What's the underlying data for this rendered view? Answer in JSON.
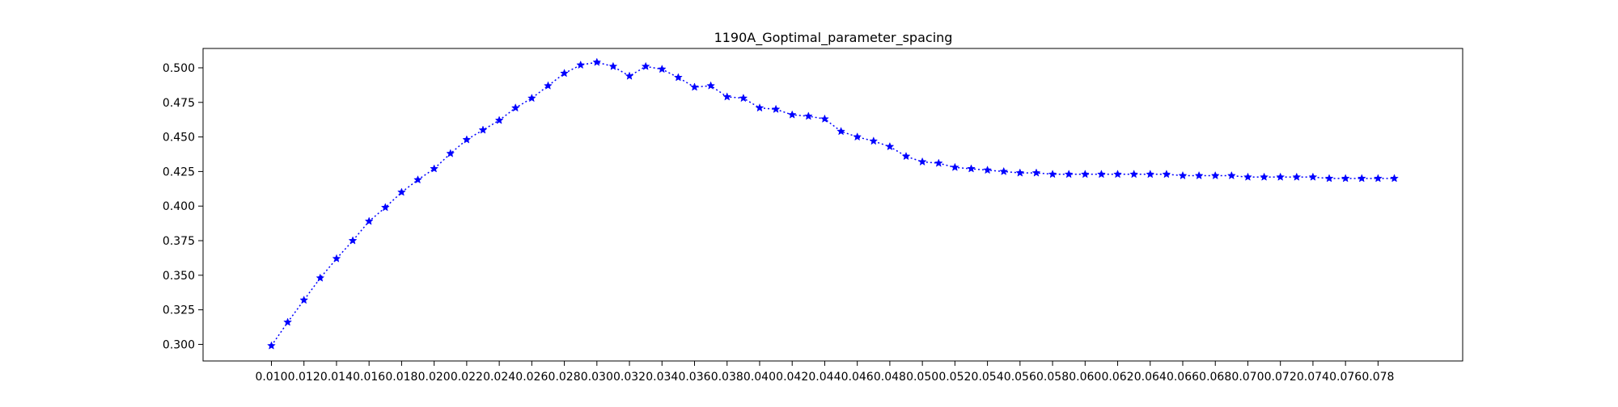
{
  "chart_data": {
    "type": "line",
    "title": "1190A_Goptimal_parameter_spacing",
    "xlabel": "",
    "ylabel": "",
    "xlim": [
      0.0058,
      0.0832
    ],
    "ylim": [
      0.288,
      0.514
    ],
    "grid": false,
    "line_style": "dotted",
    "marker": "star",
    "color": "#0000ff",
    "x_ticks": [
      0.01,
      0.012,
      0.014,
      0.016,
      0.018,
      0.02,
      0.022,
      0.024,
      0.026,
      0.028,
      0.03,
      0.032,
      0.034,
      0.036,
      0.038,
      0.04,
      0.042,
      0.044,
      0.046,
      0.048,
      0.05,
      0.052,
      0.054,
      0.056,
      0.058,
      0.06,
      0.062,
      0.064,
      0.066,
      0.068,
      0.07,
      0.072,
      0.074,
      0.076,
      0.078
    ],
    "x_tick_labels": [
      "0.010",
      "0.012",
      "0.014",
      "0.016",
      "0.018",
      "0.020",
      "0.022",
      "0.024",
      "0.026",
      "0.028",
      "0.030",
      "0.032",
      "0.034",
      "0.036",
      "0.038",
      "0.040",
      "0.042",
      "0.044",
      "0.046",
      "0.048",
      "0.050",
      "0.052",
      "0.054",
      "0.056",
      "0.058",
      "0.060",
      "0.062",
      "0.064",
      "0.066",
      "0.068",
      "0.070",
      "0.072",
      "0.074",
      "0.076",
      "0.078"
    ],
    "y_ticks": [
      0.3,
      0.325,
      0.35,
      0.375,
      0.4,
      0.425,
      0.45,
      0.475,
      0.5
    ],
    "y_tick_labels": [
      "0.300",
      "0.325",
      "0.350",
      "0.375",
      "0.400",
      "0.425",
      "0.450",
      "0.475",
      "0.500"
    ],
    "series": [
      {
        "x": [
          0.01,
          0.011,
          0.012,
          0.013,
          0.014,
          0.015,
          0.016,
          0.017,
          0.018,
          0.019,
          0.02,
          0.021,
          0.022,
          0.023,
          0.024,
          0.025,
          0.026,
          0.027,
          0.028,
          0.029,
          0.03,
          0.031,
          0.032,
          0.033,
          0.034,
          0.035,
          0.036,
          0.037,
          0.038,
          0.039,
          0.04,
          0.041,
          0.042,
          0.043,
          0.044,
          0.045,
          0.046,
          0.047,
          0.048,
          0.049,
          0.05,
          0.051,
          0.052,
          0.053,
          0.054,
          0.055,
          0.056,
          0.057,
          0.058,
          0.059,
          0.06,
          0.061,
          0.062,
          0.063,
          0.064,
          0.065,
          0.066,
          0.067,
          0.068,
          0.069,
          0.07,
          0.071,
          0.072,
          0.073,
          0.074,
          0.075,
          0.076,
          0.077,
          0.078,
          0.079
        ],
        "values": [
          0.299,
          0.316,
          0.332,
          0.348,
          0.362,
          0.375,
          0.389,
          0.399,
          0.41,
          0.419,
          0.427,
          0.438,
          0.448,
          0.455,
          0.462,
          0.471,
          0.478,
          0.487,
          0.496,
          0.502,
          0.504,
          0.501,
          0.494,
          0.501,
          0.499,
          0.493,
          0.486,
          0.487,
          0.479,
          0.478,
          0.471,
          0.47,
          0.466,
          0.465,
          0.463,
          0.454,
          0.45,
          0.447,
          0.443,
          0.436,
          0.432,
          0.431,
          0.428,
          0.427,
          0.426,
          0.425,
          0.424,
          0.424,
          0.423,
          0.423,
          0.423,
          0.423,
          0.423,
          0.423,
          0.423,
          0.423,
          0.422,
          0.422,
          0.422,
          0.422,
          0.421,
          0.421,
          0.421,
          0.421,
          0.421,
          0.42,
          0.42,
          0.42,
          0.42,
          0.42
        ]
      }
    ]
  }
}
